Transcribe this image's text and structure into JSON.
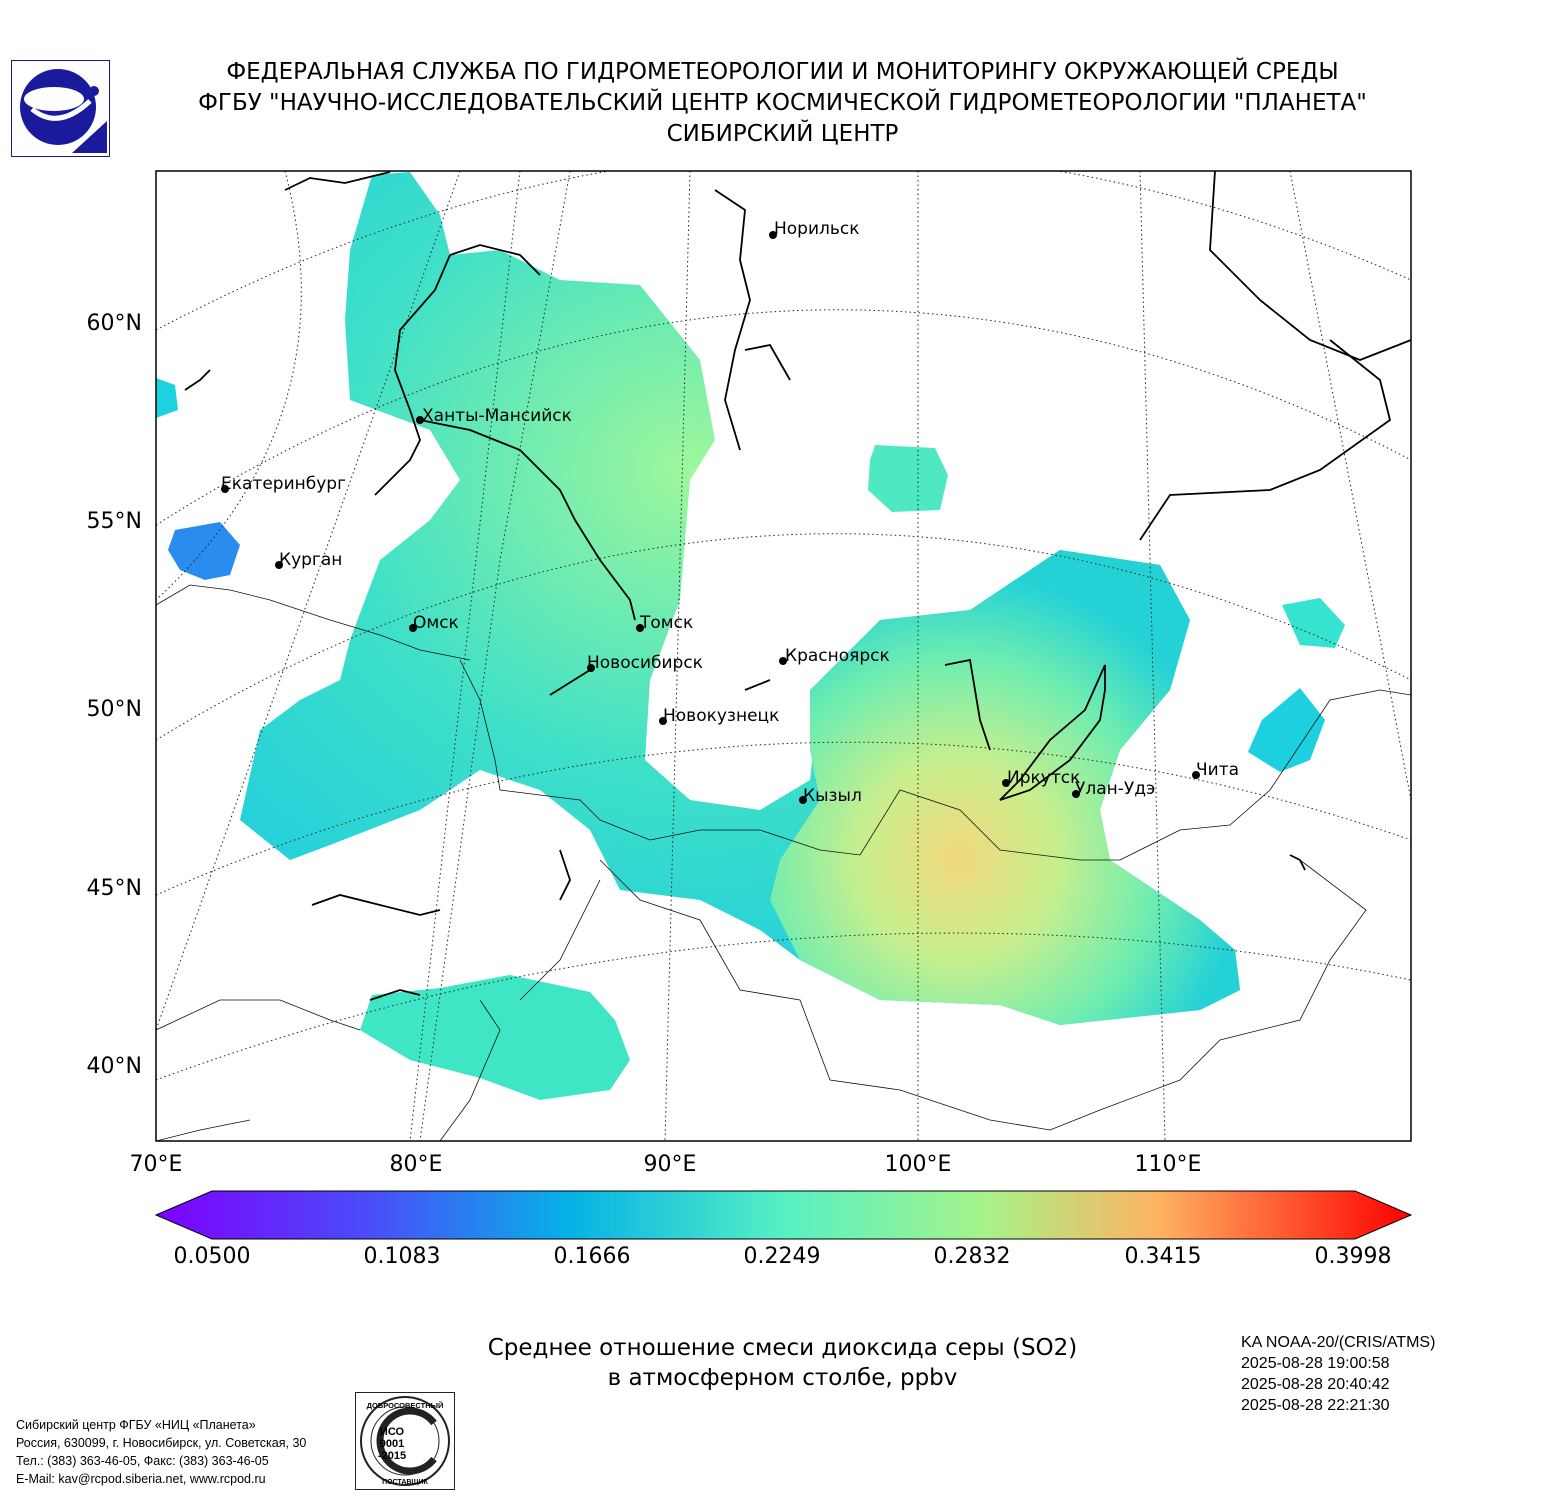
{
  "header": {
    "line1": "ФЕДЕРАЛЬНАЯ СЛУЖБА ПО ГИДРОМЕТЕОРОЛОГИИ И МОНИТОРИНГУ ОКРУЖАЮЩЕЙ СРЕДЫ",
    "line2": "ФГБУ \"НАУЧНО-ИССЛЕДОВАТЕЛЬСКИЙ ЦЕНТР КОСМИЧЕСКОЙ ГИДРОМЕТЕОРОЛОГИИ \"ПЛАНЕТА\"",
    "line3": "СИБИРСКИЙ ЦЕНТР"
  },
  "map": {
    "lat_labels": [
      "60°N",
      "55°N",
      "50°N",
      "45°N",
      "40°N"
    ],
    "lon_labels": [
      "70°E",
      "80°E",
      "90°E",
      "100°E",
      "110°E"
    ],
    "cities": [
      {
        "name": "Норильск"
      },
      {
        "name": "Ханты-Мансийск"
      },
      {
        "name": "Екатеринбург"
      },
      {
        "name": "Курган"
      },
      {
        "name": "Омск"
      },
      {
        "name": "Томск"
      },
      {
        "name": "Новосибирск"
      },
      {
        "name": "Красноярск"
      },
      {
        "name": "Новокузнецк"
      },
      {
        "name": "Кызыл"
      },
      {
        "name": "Иркутск"
      },
      {
        "name": "Улан-Удэ"
      },
      {
        "name": "Чита"
      }
    ]
  },
  "colorbar": {
    "min": 0.05,
    "max": 0.3998,
    "ticks": [
      "0.0500",
      "0.1083",
      "0.1666",
      "0.2249",
      "0.2832",
      "0.3415",
      "0.3998"
    ]
  },
  "title": {
    "line1": "Среднее отношение смеси диоксида серы (SO2)",
    "line2": "в атмосферном столбе, ppbv"
  },
  "satellite": {
    "name": "KA NOAA-20/(CRIS/ATMS)",
    "times": [
      "2025-08-28 19:00:58",
      "2025-08-28 20:40:42",
      "2025-08-28 22:21:30"
    ]
  },
  "footer": {
    "line1": "Сибирский центр ФГБУ «НИЦ «Планета»",
    "line2": "Россия, 630099, г. Новосибирск, ул. Советская, 30",
    "line3": "Тел.: (383) 363-46-05, Факс: (383) 363-46-05",
    "line4": "E-Mail: kav@rcpod.siberia.net, www.rcpod.ru"
  },
  "iso_stamp": {
    "top": "ДОБРОСОВЕСТНЫЙ",
    "mid1": "ИСО",
    "mid2": "9001",
    "mid3": "-2015",
    "bottom": "ПОСТАВЩИК"
  }
}
